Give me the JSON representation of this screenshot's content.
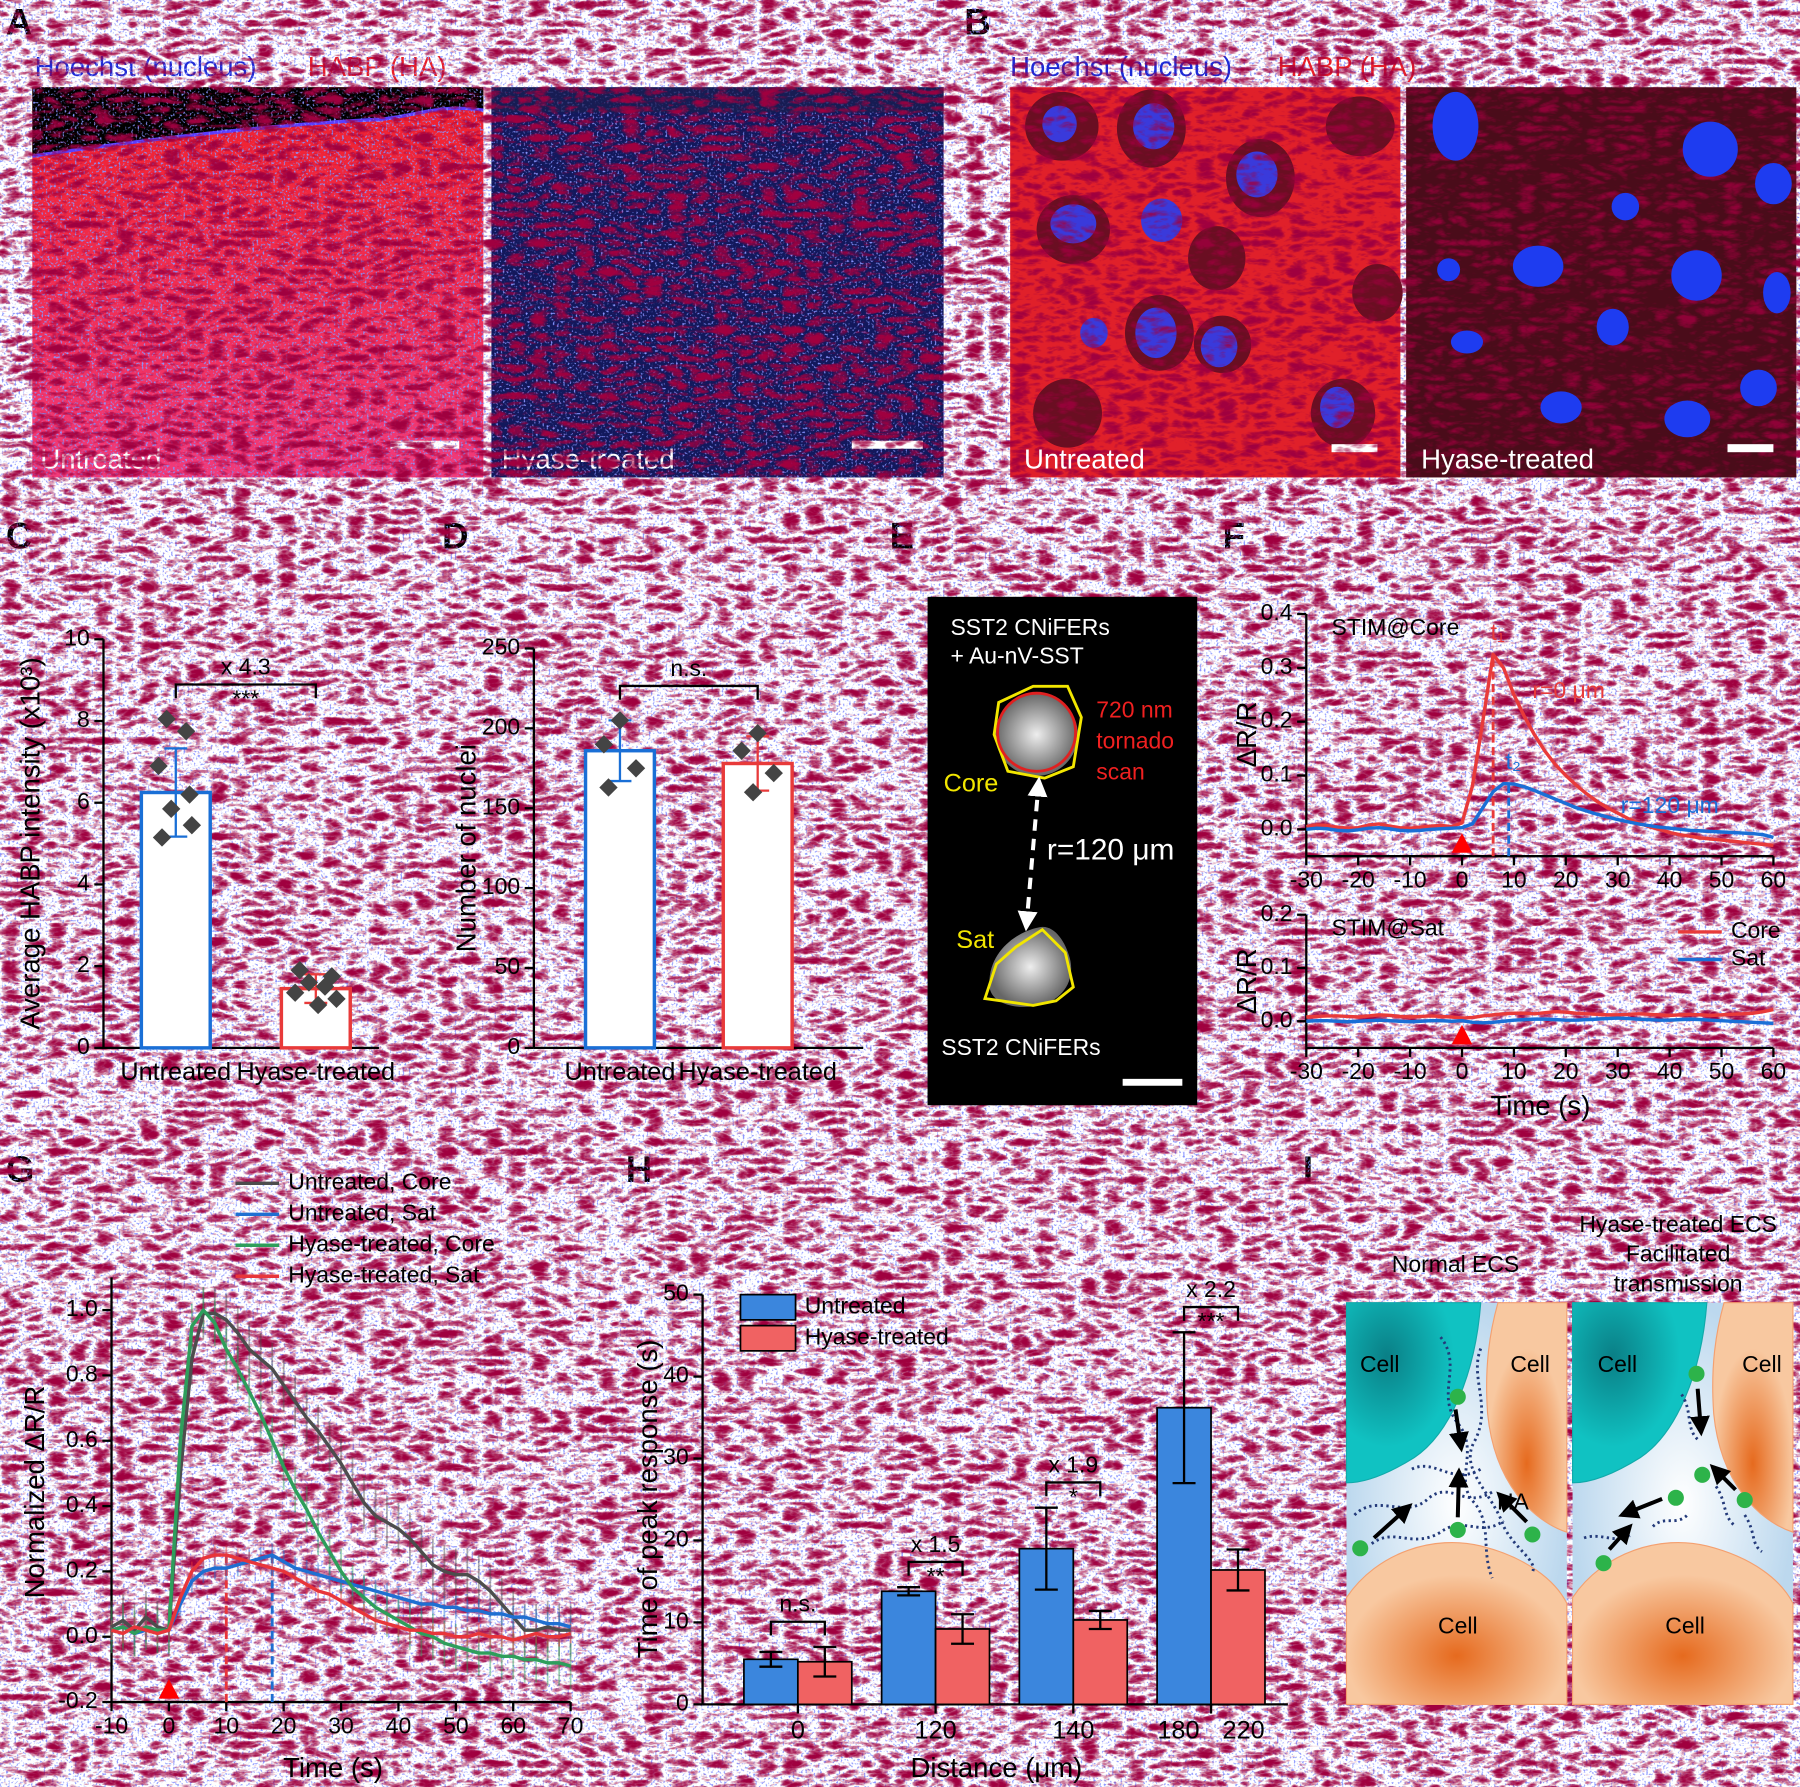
{
  "panel_labels": [
    "A",
    "B",
    "C",
    "D",
    "E",
    "F",
    "G",
    "H",
    "I"
  ],
  "stain_legend": {
    "nucleus": "Hoechst (nucleus)",
    "ha": "HABP (HA)"
  },
  "image_labels": [
    "Untreated",
    "Hyase-treated"
  ],
  "panel_e": {
    "lines": [
      "SST2 CNiFERs",
      "+ Au-nV-SST"
    ],
    "scan": [
      "720 nm",
      "tornado",
      "scan"
    ],
    "core": "Core",
    "distance": "r=120 μm",
    "sat": "Sat",
    "bottom": "SST2 CNiFERs"
  },
  "panel_i": {
    "left_title": "Normal ECS",
    "right_title": [
      "Hyase-treated ECS",
      "Facilitated",
      "transmission"
    ],
    "cell": "Cell",
    "ha": "HA"
  },
  "chart_data": [
    {
      "type": "bar",
      "ylabel": "Average HABP intensity (x10³)",
      "categories": [
        "Untreated",
        "Hyase-treated"
      ],
      "values": [
        6.25,
        1.45
      ],
      "errors": [
        1.08,
        0.35
      ],
      "colors": [
        "#1a6fd6",
        "#e83a3a"
      ],
      "points": [
        [
          8.05,
          7.75,
          6.9,
          6.2,
          5.85,
          5.45,
          5.15
        ],
        [
          1.9,
          1.75,
          1.6,
          1.5,
          1.35,
          1.2,
          1.05
        ]
      ],
      "ylim": [
        0,
        10
      ],
      "yticks": [
        0,
        2,
        4,
        6,
        8,
        10
      ],
      "bracket": {
        "ratio": "x 4.3",
        "sig": "***"
      }
    },
    {
      "type": "bar",
      "ylabel": "Number of nuclei",
      "categories": [
        "Untreated",
        "Hyase-treated"
      ],
      "values": [
        186,
        178
      ],
      "errors": [
        19,
        17
      ],
      "colors": [
        "#1a6fd6",
        "#e83a3a"
      ],
      "points": [
        [
          205,
          190,
          175,
          163
        ],
        [
          197,
          186,
          172,
          160
        ]
      ],
      "ylim": [
        0,
        250
      ],
      "yticks": [
        0,
        50,
        100,
        150,
        200,
        250
      ],
      "bracket": {
        "sig": "n.s."
      }
    },
    {
      "type": "line",
      "title": "STIM@Core",
      "ylabel": "ΔR/R",
      "stimulus": 0,
      "x": [
        -30,
        -28,
        -26,
        -24,
        -22,
        -20,
        -18,
        -16,
        -14,
        -12,
        -10,
        -8,
        -6,
        -4,
        -2,
        0,
        2,
        4,
        6,
        8,
        10,
        12,
        14,
        16,
        18,
        20,
        22,
        24,
        26,
        28,
        30,
        32,
        34,
        36,
        38,
        40,
        42,
        44,
        46,
        48,
        50,
        52,
        54,
        56,
        58,
        60
      ],
      "series": [
        {
          "name": "r=0 μm",
          "color": "#e83a3a",
          "values": [
            0.005,
            0.008,
            0.007,
            0.004,
            0.002,
            0.003,
            0.008,
            0.01,
            0.006,
            0.003,
            0.002,
            0.004,
            0.006,
            0.007,
            0.005,
            0.012,
            0.08,
            0.2,
            0.325,
            0.3,
            0.25,
            0.21,
            0.175,
            0.145,
            0.12,
            0.1,
            0.082,
            0.066,
            0.052,
            0.04,
            0.03,
            0.02,
            0.012,
            0.005,
            0,
            -0.006,
            -0.01,
            -0.013,
            -0.016,
            -0.018,
            -0.02,
            -0.022,
            -0.024,
            -0.026,
            -0.028,
            -0.03
          ]
        },
        {
          "name": "r=120 μm",
          "color": "#1a6fd6",
          "values": [
            0,
            0.002,
            0.001,
            -0.002,
            -0.003,
            -0.001,
            0.002,
            0.003,
            0.001,
            -0.002,
            -0.003,
            -0.002,
            0,
            0.001,
            0.002,
            0.003,
            0.01,
            0.04,
            0.07,
            0.085,
            0.084,
            0.079,
            0.072,
            0.064,
            0.056,
            0.048,
            0.04,
            0.034,
            0.028,
            0.023,
            0.018,
            0.014,
            0.01,
            0.007,
            0.004,
            0.002,
            0,
            -0.002,
            -0.003,
            -0.004,
            -0.005,
            -0.006,
            -0.007,
            -0.008,
            -0.01,
            -0.015
          ]
        }
      ],
      "markers": [
        {
          "x": 6,
          "y": 0.325,
          "label": "t₁",
          "color": "#e83a3a"
        },
        {
          "x": 9,
          "y": 0.085,
          "label": "t₂",
          "color": "#1a6fd6"
        }
      ],
      "xlim": [
        -30,
        60
      ],
      "xticks": [
        -30,
        -20,
        -10,
        0,
        10,
        20,
        30,
        40,
        50,
        60
      ],
      "ylim": [
        -0.05,
        0.4
      ],
      "yticks": [
        {
          "value": 0,
          "label": "0.0"
        },
        0.1,
        0.2,
        0.3,
        0.4
      ]
    },
    {
      "type": "line",
      "title": "STIM@Sat",
      "ylabel": "ΔR/R",
      "xlabel": "Time (s)",
      "stimulus": 0,
      "legend": "upper right",
      "x": [
        -30,
        -28,
        -26,
        -24,
        -22,
        -20,
        -18,
        -16,
        -14,
        -12,
        -10,
        -8,
        -6,
        -4,
        -2,
        0,
        2,
        4,
        6,
        8,
        10,
        12,
        14,
        16,
        18,
        20,
        22,
        24,
        26,
        28,
        30,
        32,
        34,
        36,
        38,
        40,
        42,
        44,
        46,
        48,
        50,
        52,
        54,
        56,
        58,
        60
      ],
      "series": [
        {
          "name": "Core",
          "color": "#e83a3a",
          "values": [
            0.008,
            0.009,
            0.01,
            0.01,
            0.009,
            0.008,
            0.01,
            0.012,
            0.011,
            0.009,
            0.008,
            0.009,
            0.01,
            0.009,
            0.008,
            0.006,
            0.007,
            0.01,
            0.012,
            0.014,
            0.015,
            0.015,
            0.014,
            0.016,
            0.018,
            0.017,
            0.015,
            0.014,
            0.013,
            0.012,
            0.012,
            0.013,
            0.014,
            0.013,
            0.012,
            0.011,
            0.012,
            0.013,
            0.012,
            0.011,
            0.012,
            0.013,
            0.014,
            0.015,
            0.018,
            0.022
          ]
        },
        {
          "name": "Sat",
          "color": "#1a6fd6",
          "values": [
            0,
            0.001,
            0.001,
            0,
            -0.001,
            0,
            0.001,
            0.002,
            0.001,
            0,
            -0.001,
            0,
            0.001,
            0.001,
            0,
            0.001,
            -0.002,
            -0.003,
            -0.002,
            0,
            0.002,
            0.003,
            0.004,
            0.004,
            0.003,
            0.002,
            0.002,
            0.003,
            0.004,
            0.005,
            0.006,
            0.005,
            0.004,
            0.003,
            0.002,
            0.002,
            0.003,
            0.004,
            0.003,
            0.002,
            0.001,
            0,
            -0.001,
            -0.002,
            -0.003,
            -0.004
          ]
        }
      ],
      "xlim": [
        -30,
        60
      ],
      "xticks": [
        -30,
        -20,
        -10,
        0,
        10,
        20,
        30,
        40,
        50,
        60
      ],
      "ylim": [
        -0.05,
        0.2
      ],
      "yticks": [
        {
          "value": 0,
          "label": "0.0"
        },
        0.1,
        0.2
      ]
    },
    {
      "type": "line",
      "ylabel": "Normalized ΔR/R",
      "xlabel": "Time (s)",
      "stimulus": 0,
      "legend": "upper right",
      "x": [
        -10,
        -8,
        -6,
        -4,
        -2,
        0,
        2,
        4,
        6,
        8,
        10,
        12,
        14,
        16,
        18,
        20,
        22,
        24,
        26,
        28,
        30,
        32,
        34,
        36,
        38,
        40,
        42,
        44,
        46,
        48,
        50,
        52,
        54,
        56,
        58,
        60,
        62,
        64,
        66,
        68,
        70
      ],
      "series": [
        {
          "name": "Untreated, Core",
          "color": "#4d4d4d",
          "error": 0.08,
          "values": [
            0.03,
            0.05,
            0.02,
            0.06,
            0.03,
            0.02,
            0.5,
            0.85,
            0.99,
            0.99,
            0.97,
            0.93,
            0.88,
            0.85,
            0.82,
            0.77,
            0.72,
            0.67,
            0.63,
            0.58,
            0.53,
            0.47,
            0.41,
            0.37,
            0.35,
            0.33,
            0.3,
            0.26,
            0.22,
            0.2,
            0.19,
            0.19,
            0.17,
            0.14,
            0.1,
            0.06,
            0.02,
            0.02,
            0.03,
            0.02,
            0.02
          ]
        },
        {
          "name": "Untreated, Sat",
          "color": "#1f6fd1",
          "error": 0.035,
          "values": [
            0.02,
            0.03,
            0.01,
            0.02,
            0.02,
            0.02,
            0.1,
            0.17,
            0.2,
            0.21,
            0.21,
            0.22,
            0.23,
            0.24,
            0.25,
            0.23,
            0.21,
            0.2,
            0.19,
            0.18,
            0.17,
            0.16,
            0.15,
            0.14,
            0.13,
            0.12,
            0.11,
            0.1,
            0.1,
            0.09,
            0.09,
            0.08,
            0.08,
            0.07,
            0.07,
            0.06,
            0.06,
            0.05,
            0.04,
            0.04,
            0.03
          ]
        },
        {
          "name": "Hyase-treated, Core",
          "color": "#2e9e5b",
          "error": 0.07,
          "values": [
            0.02,
            0.03,
            0.01,
            0.03,
            0.02,
            0.02,
            0.6,
            0.95,
            1.0,
            0.96,
            0.88,
            0.82,
            0.75,
            0.68,
            0.6,
            0.52,
            0.45,
            0.39,
            0.32,
            0.26,
            0.2,
            0.15,
            0.12,
            0.09,
            0.07,
            0.05,
            0.03,
            0.01,
            0,
            -0.02,
            -0.03,
            -0.04,
            -0.05,
            -0.05,
            -0.06,
            -0.06,
            -0.07,
            -0.07,
            -0.08,
            -0.08,
            -0.09
          ]
        },
        {
          "name": "Hyase-treated, Sat",
          "color": "#e8353a",
          "error": 0.03,
          "values": [
            0.02,
            0.01,
            0.03,
            0.02,
            0.01,
            0.02,
            0.12,
            0.2,
            0.24,
            0.25,
            0.25,
            0.24,
            0.23,
            0.22,
            0.21,
            0.2,
            0.18,
            0.16,
            0.14,
            0.13,
            0.11,
            0.09,
            0.07,
            0.05,
            0.04,
            0.03,
            0.02,
            0.02,
            0.01,
            0.01,
            0,
            0,
            0.01,
            0,
            0,
            -0.01,
            0,
            0.01,
            0,
            0,
            0.01
          ]
        }
      ],
      "markers": [
        {
          "x": 10,
          "y": 0.25,
          "color": "#e8353a"
        },
        {
          "x": 18,
          "y": 0.25,
          "color": "#1f6fd1"
        }
      ],
      "xlim": [
        -10,
        70
      ],
      "xticks": [
        -10,
        0,
        10,
        20,
        30,
        40,
        50,
        60,
        70
      ],
      "ylim": [
        -0.2,
        1.1
      ],
      "yticks": [
        -0.2,
        {
          "value": 0,
          "label": "0.0"
        },
        0.2,
        0.4,
        0.6,
        0.8,
        {
          "value": 1,
          "label": "1.0"
        }
      ]
    },
    {
      "type": "groupedbar",
      "ylabel": "Time of peak response (s)",
      "xlabel": "Distance (μm)",
      "legend": "upper left",
      "categories": [
        "0",
        "120",
        "140",
        "180 220"
      ],
      "series": [
        {
          "name": "Untreated",
          "color": "#3b86dd",
          "values": [
            5.5,
            13.8,
            19,
            36.2
          ],
          "errors": [
            0.9,
            0.5,
            5,
            9.2
          ]
        },
        {
          "name": "Hyase-treated",
          "color": "#f06262",
          "values": [
            5.2,
            9.2,
            10.3,
            16.4
          ],
          "errors": [
            1.8,
            1.8,
            1.1,
            2.5
          ]
        }
      ],
      "brackets": [
        {
          "sig": "n.s."
        },
        {
          "ratio": "x 1.5",
          "sig": "**"
        },
        {
          "ratio": "x 1.9",
          "sig": "*"
        },
        {
          "ratio": "x 2.2",
          "sig": "***"
        }
      ],
      "ylim": [
        0,
        50
      ],
      "yticks": [
        0,
        10,
        20,
        30,
        40,
        50
      ]
    }
  ]
}
